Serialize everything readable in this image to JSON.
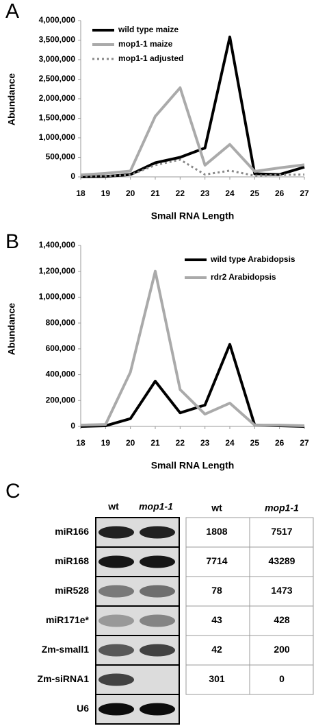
{
  "chart_data": [
    {
      "type": "line",
      "panel_label": "A",
      "x_label": "Small RNA Length",
      "y_label": "Abundance",
      "x": [
        18,
        19,
        20,
        21,
        22,
        23,
        24,
        25,
        26,
        27
      ],
      "xlim": [
        18,
        27
      ],
      "xticks": [
        18,
        19,
        20,
        21,
        22,
        23,
        24,
        25,
        26,
        27
      ],
      "ylim": [
        0,
        4000000
      ],
      "yticks": [
        0,
        {
          "value": 500000,
          "label": "500,000"
        },
        {
          "value": 1000000,
          "label": "1,000,000"
        },
        {
          "value": 1500000,
          "label": "1,500,000"
        },
        {
          "value": 2000000,
          "label": "2,000,000"
        },
        {
          "value": 2500000,
          "label": "2,500,000"
        },
        {
          "value": 3000000,
          "label": "3,000,000"
        },
        {
          "value": 3500000,
          "label": "3,500,000"
        },
        {
          "value": 4000000,
          "label": "4,000,000"
        }
      ],
      "legend": "upper left",
      "grid": false,
      "series": [
        {
          "name": "wild type maize",
          "color": "#000000",
          "style": "solid",
          "values": [
            0,
            10000,
            60000,
            360000,
            500000,
            740000,
            3580000,
            80000,
            60000,
            250000
          ]
        },
        {
          "name": "mop1-1 maize",
          "color": "#aaaaaa",
          "style": "solid",
          "values": [
            50000,
            90000,
            150000,
            1550000,
            2280000,
            300000,
            830000,
            140000,
            230000,
            310000
          ]
        },
        {
          "name": "mop1-1 adjusted",
          "color": "#888888",
          "style": "dotted",
          "values": [
            10000,
            20000,
            50000,
            300000,
            440000,
            60000,
            160000,
            30000,
            50000,
            60000
          ]
        }
      ]
    },
    {
      "type": "line",
      "panel_label": "B",
      "x_label": "Small RNA Length",
      "y_label": "Abundance",
      "x": [
        18,
        19,
        20,
        21,
        22,
        23,
        24,
        25,
        26,
        27
      ],
      "xlim": [
        18,
        27
      ],
      "xticks": [
        18,
        19,
        20,
        21,
        22,
        23,
        24,
        25,
        26,
        27
      ],
      "ylim": [
        0,
        1400000
      ],
      "yticks": [
        0,
        {
          "value": 200000,
          "label": "200,000"
        },
        {
          "value": 400000,
          "label": "400,000"
        },
        {
          "value": 600000,
          "label": "600,000"
        },
        {
          "value": 800000,
          "label": "800,000"
        },
        {
          "value": 1000000,
          "label": "1,000,000"
        },
        {
          "value": 1200000,
          "label": "1,200,000"
        },
        {
          "value": 1400000,
          "label": "1,400,000"
        }
      ],
      "legend": "upper right",
      "grid": false,
      "series": [
        {
          "name": "wild type Arabidopsis",
          "color": "#000000",
          "style": "solid",
          "values": [
            0,
            5000,
            60000,
            350000,
            105000,
            165000,
            635000,
            10000,
            5000,
            0
          ]
        },
        {
          "name": "rdr2 Arabidopsis",
          "color": "#aaaaaa",
          "style": "solid",
          "values": [
            10000,
            15000,
            420000,
            1200000,
            285000,
            95000,
            180000,
            10000,
            10000,
            5000
          ]
        }
      ]
    }
  ],
  "panel_c": {
    "panel_label": "C",
    "lanes": [
      "wt",
      "mop1-1"
    ],
    "rows": [
      "miR166",
      "miR168",
      "miR528",
      "miR171e*",
      "Zm-small1",
      "Zm-siRNA1",
      "U6"
    ],
    "table": {
      "header": [
        "wt",
        "mop1-1"
      ],
      "rows": [
        [
          "1808",
          "7517"
        ],
        [
          "7714",
          "43289"
        ],
        [
          "78",
          "1473"
        ],
        [
          "43",
          "428"
        ],
        [
          "42",
          "200"
        ],
        [
          "301",
          "0"
        ]
      ]
    }
  }
}
